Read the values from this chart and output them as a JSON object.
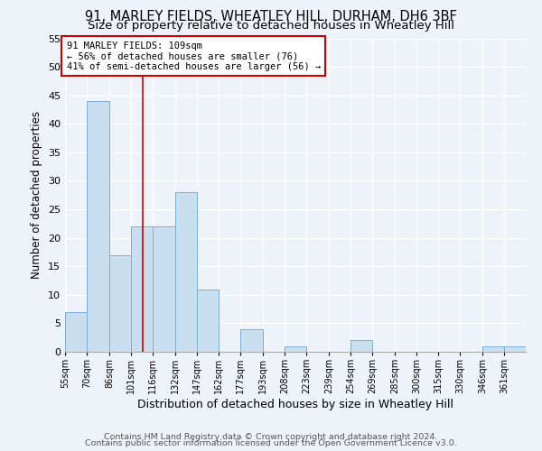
{
  "title1": "91, MARLEY FIELDS, WHEATLEY HILL, DURHAM, DH6 3BF",
  "title2": "Size of property relative to detached houses in Wheatley Hill",
  "xlabel": "Distribution of detached houses by size in Wheatley Hill",
  "ylabel": "Number of detached properties",
  "bin_labels": [
    "55sqm",
    "70sqm",
    "86sqm",
    "101sqm",
    "116sqm",
    "132sqm",
    "147sqm",
    "162sqm",
    "177sqm",
    "193sqm",
    "208sqm",
    "223sqm",
    "239sqm",
    "254sqm",
    "269sqm",
    "285sqm",
    "300sqm",
    "315sqm",
    "330sqm",
    "346sqm",
    "361sqm"
  ],
  "bin_edges": [
    55,
    70,
    86,
    101,
    116,
    132,
    147,
    162,
    177,
    193,
    208,
    223,
    239,
    254,
    269,
    285,
    300,
    315,
    330,
    346,
    361,
    376
  ],
  "values": [
    7,
    44,
    17,
    22,
    22,
    28,
    11,
    0,
    4,
    0,
    1,
    0,
    0,
    2,
    0,
    0,
    0,
    0,
    0,
    1,
    1
  ],
  "bar_color": "#c9dff0",
  "bar_edge_color": "#7bafd4",
  "red_line_x": 109,
  "annotation_text": "91 MARLEY FIELDS: 109sqm\n← 56% of detached houses are smaller (76)\n41% of semi-detached houses are larger (56) →",
  "annotation_box_color": "#ffffff",
  "annotation_box_edge_color": "#cc0000",
  "footer1": "Contains HM Land Registry data © Crown copyright and database right 2024.",
  "footer2": "Contains public sector information licensed under the Open Government Licence v3.0.",
  "ylim": [
    0,
    55
  ],
  "background_color": "#eef2f9",
  "grid_color": "#ffffff",
  "title1_fontsize": 10.5,
  "title2_fontsize": 9.5,
  "xlabel_fontsize": 9,
  "ylabel_fontsize": 8.5,
  "footer_fontsize": 6.8
}
